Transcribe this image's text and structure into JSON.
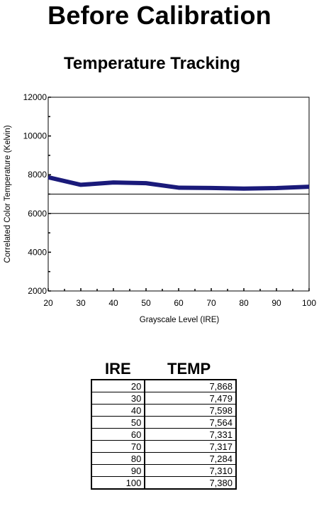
{
  "title": "Before Calibration",
  "chart_data": {
    "type": "line",
    "title": "Temperature Tracking",
    "xlabel": "Grayscale Level (IRE)",
    "ylabel": "Correlated Color Temperature (Kelvin)",
    "x": [
      20,
      30,
      40,
      50,
      60,
      70,
      80,
      90,
      100
    ],
    "series": [
      {
        "values": [
          7868,
          7479,
          7598,
          7564,
          7331,
          7317,
          7284,
          7310,
          7380
        ],
        "color": "#1a1a7a"
      }
    ],
    "reference_lines": [
      7000,
      6000
    ],
    "xlim": [
      20,
      100
    ],
    "ylim": [
      2000,
      12000
    ],
    "xticks": [
      "20",
      "30",
      "40",
      "50",
      "60",
      "70",
      "80",
      "90",
      "100"
    ],
    "yticks": [
      "2000",
      "4000",
      "6000",
      "8000",
      "10000",
      "12000"
    ],
    "grid": false
  },
  "table": {
    "headers": [
      "IRE",
      "TEMP"
    ],
    "rows": [
      [
        "20",
        "7,868"
      ],
      [
        "30",
        "7,479"
      ],
      [
        "40",
        "7,598"
      ],
      [
        "50",
        "7,564"
      ],
      [
        "60",
        "7,331"
      ],
      [
        "70",
        "7,317"
      ],
      [
        "80",
        "7,284"
      ],
      [
        "90",
        "7,310"
      ],
      [
        "100",
        "7,380"
      ]
    ]
  }
}
